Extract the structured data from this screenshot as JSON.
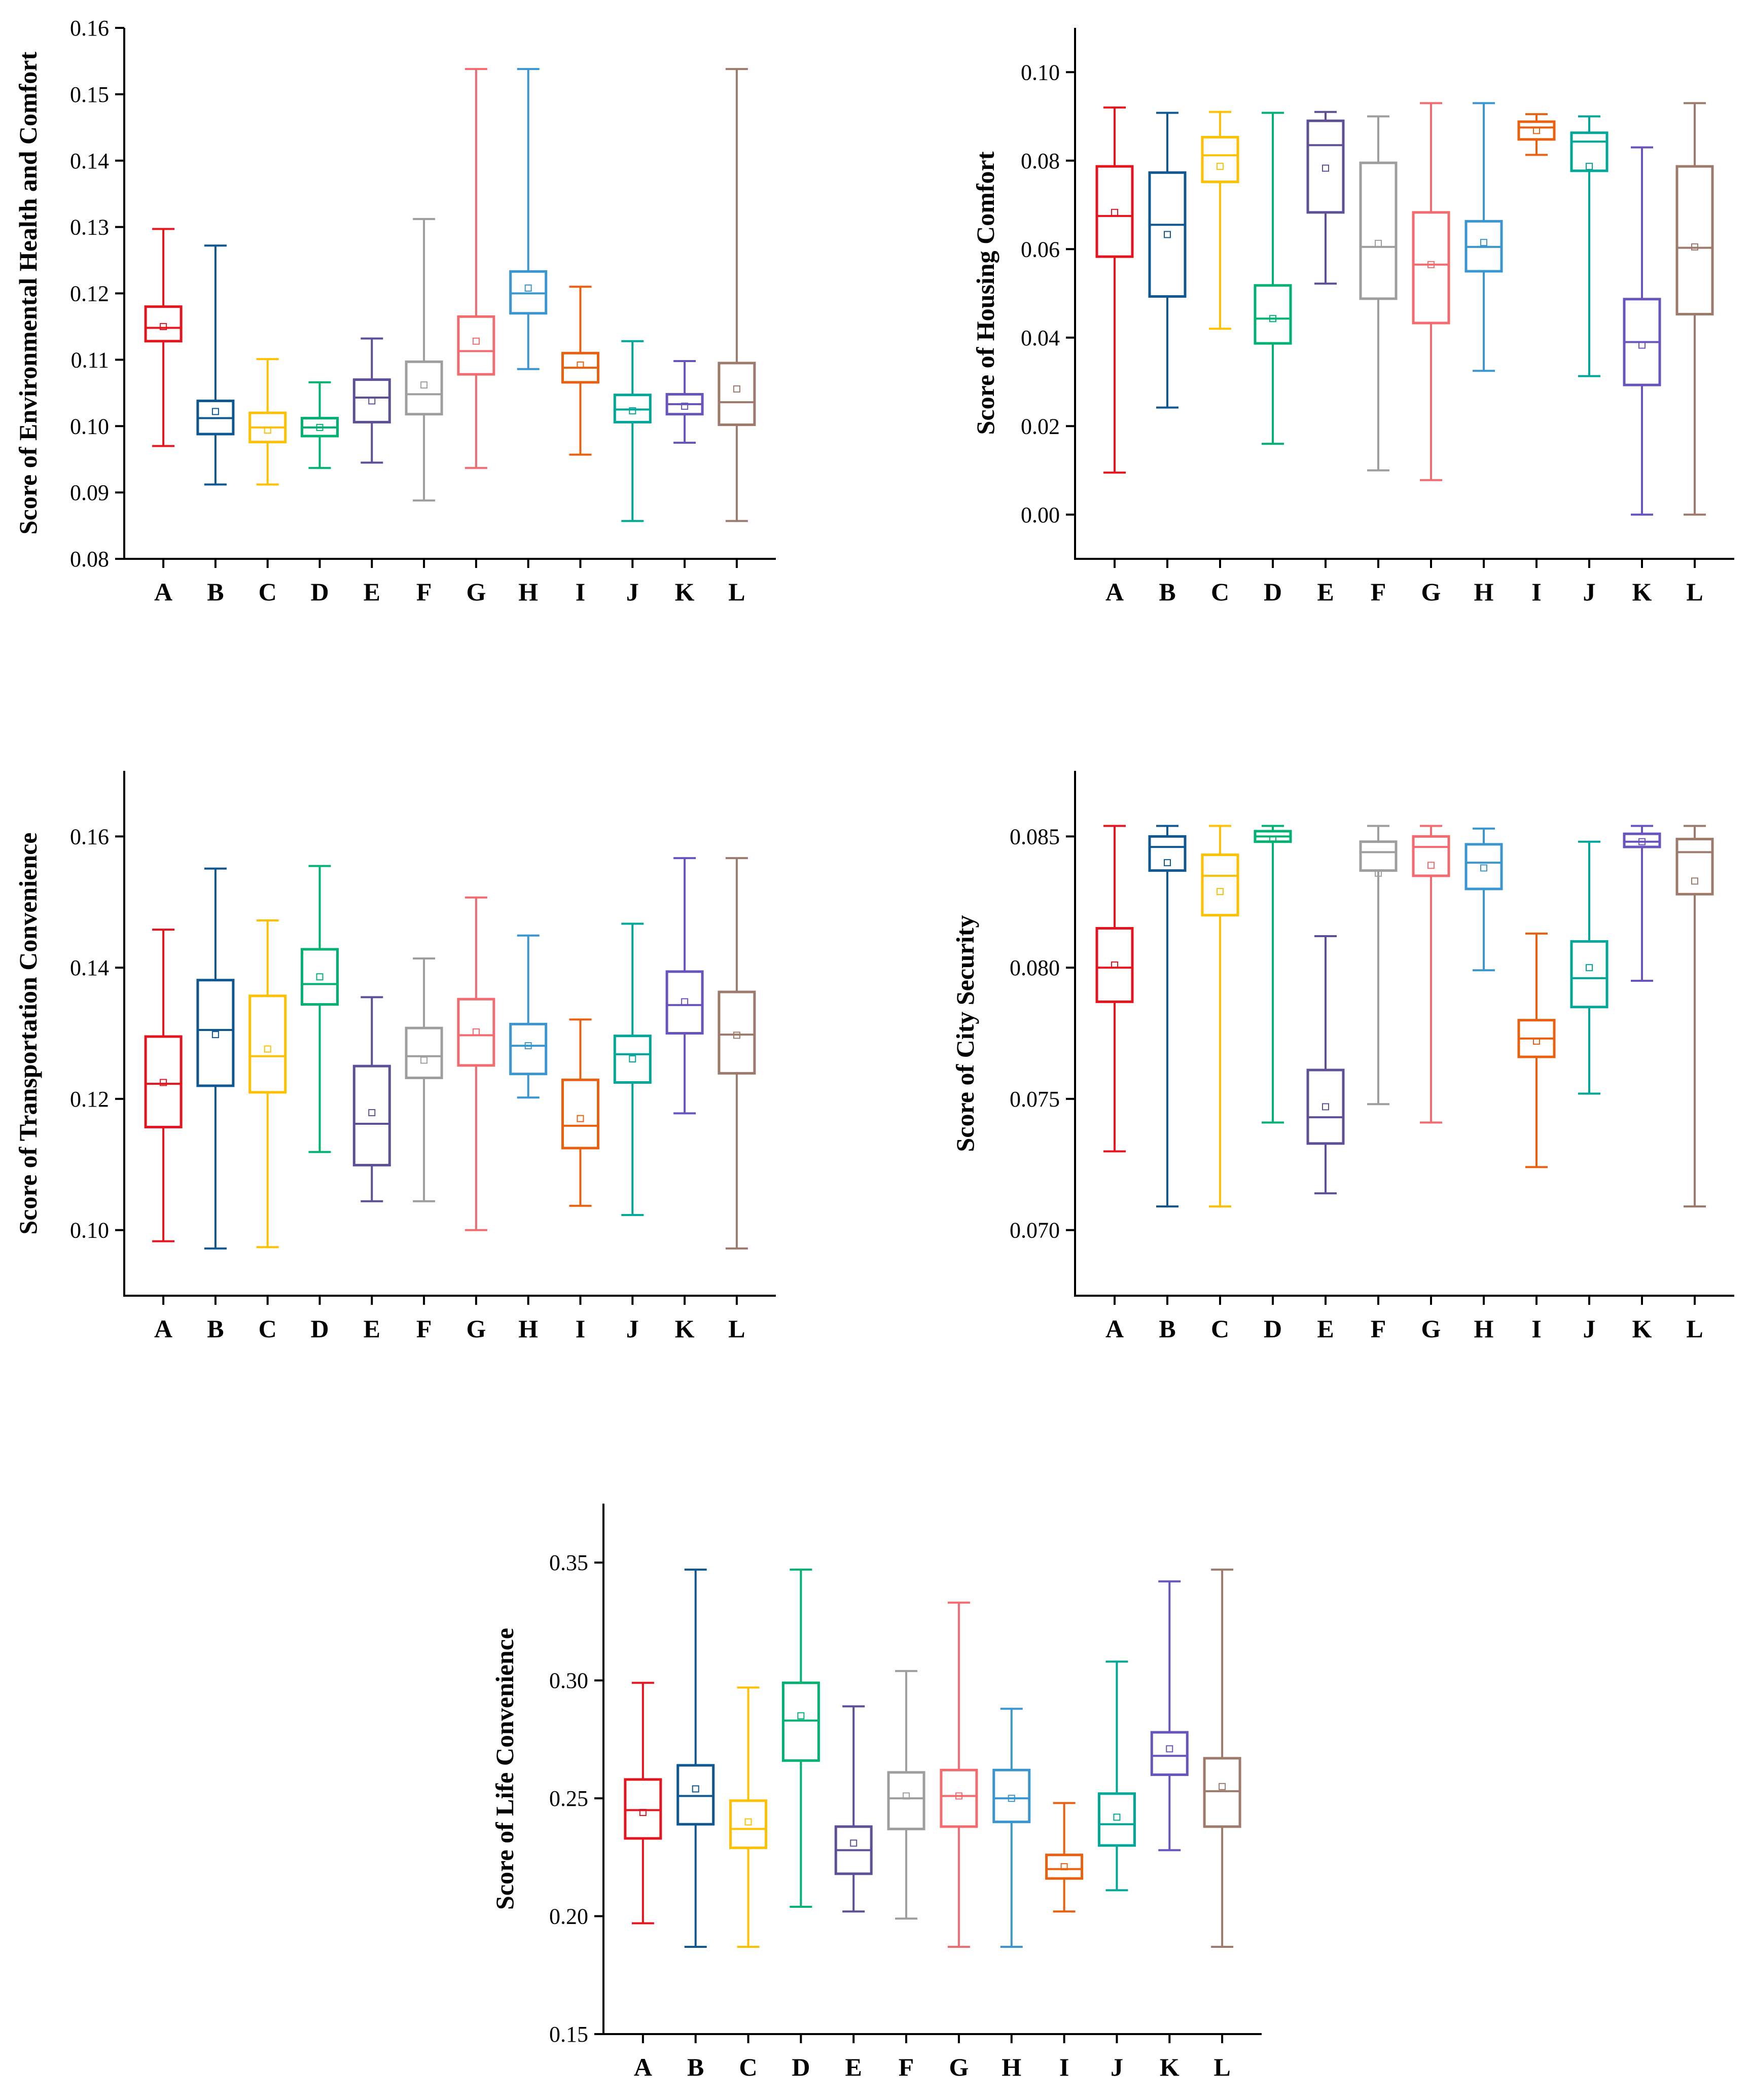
{
  "chart_data": [
    {
      "type": "box",
      "ylabel": "Score of Environmental Health and Comfort",
      "ylim": [
        0.08,
        0.16
      ],
      "yticks": [
        "0.08",
        "0.09",
        "0.10",
        "0.11",
        "0.12",
        "0.13",
        "0.14",
        "0.15",
        "0.16"
      ],
      "categories": [
        "A",
        "B",
        "C",
        "D",
        "E",
        "F",
        "G",
        "H",
        "I",
        "J",
        "K",
        "L"
      ],
      "boxes": [
        {
          "min": 0.097,
          "q1": 0.1128,
          "median": 0.1148,
          "q3": 0.118,
          "max": 0.1297,
          "mean": 0.115
        },
        {
          "min": 0.0912,
          "q1": 0.0988,
          "median": 0.1012,
          "q3": 0.1038,
          "max": 0.1272,
          "mean": 0.1022
        },
        {
          "min": 0.0912,
          "q1": 0.0976,
          "median": 0.0998,
          "q3": 0.102,
          "max": 0.1101,
          "mean": 0.0994
        },
        {
          "min": 0.0937,
          "q1": 0.0985,
          "median": 0.0998,
          "q3": 0.1012,
          "max": 0.1066,
          "mean": 0.0998
        },
        {
          "min": 0.0945,
          "q1": 0.1006,
          "median": 0.1043,
          "q3": 0.107,
          "max": 0.1132,
          "mean": 0.1038
        },
        {
          "min": 0.0888,
          "q1": 0.1018,
          "median": 0.1048,
          "q3": 0.1097,
          "max": 0.1312,
          "mean": 0.1062
        },
        {
          "min": 0.0937,
          "q1": 0.1078,
          "median": 0.1113,
          "q3": 0.1165,
          "max": 0.1538,
          "mean": 0.1128
        },
        {
          "min": 0.1086,
          "q1": 0.117,
          "median": 0.12,
          "q3": 0.1233,
          "max": 0.1538,
          "mean": 0.1208
        },
        {
          "min": 0.0957,
          "q1": 0.1066,
          "median": 0.1088,
          "q3": 0.111,
          "max": 0.121,
          "mean": 0.1092
        },
        {
          "min": 0.0857,
          "q1": 0.1006,
          "median": 0.1025,
          "q3": 0.1047,
          "max": 0.1128,
          "mean": 0.1023
        },
        {
          "min": 0.0975,
          "q1": 0.1018,
          "median": 0.1033,
          "q3": 0.1048,
          "max": 0.1098,
          "mean": 0.103
        },
        {
          "min": 0.0857,
          "q1": 0.1002,
          "median": 0.1036,
          "q3": 0.1095,
          "max": 0.1538,
          "mean": 0.1056
        }
      ]
    },
    {
      "type": "box",
      "ylabel": "Score of Housing Comfort",
      "ylim": [
        -0.01,
        0.11
      ],
      "yticks": [
        "0.00",
        "0.02",
        "0.04",
        "0.06",
        "0.08",
        "0.10"
      ],
      "categories": [
        "A",
        "B",
        "C",
        "D",
        "E",
        "F",
        "G",
        "H",
        "I",
        "J",
        "K",
        "L"
      ],
      "boxes": [
        {
          "min": 0.0095,
          "q1": 0.0583,
          "median": 0.0675,
          "q3": 0.0787,
          "max": 0.092,
          "mean": 0.0683
        },
        {
          "min": 0.0242,
          "q1": 0.0493,
          "median": 0.0655,
          "q3": 0.0773,
          "max": 0.0908,
          "mean": 0.0633
        },
        {
          "min": 0.042,
          "q1": 0.0752,
          "median": 0.0812,
          "q3": 0.0853,
          "max": 0.091,
          "mean": 0.0787
        },
        {
          "min": 0.016,
          "q1": 0.0387,
          "median": 0.0443,
          "q3": 0.0518,
          "max": 0.0908,
          "mean": 0.0443
        },
        {
          "min": 0.0522,
          "q1": 0.0683,
          "median": 0.0835,
          "q3": 0.089,
          "max": 0.091,
          "mean": 0.0783
        },
        {
          "min": 0.01,
          "q1": 0.0488,
          "median": 0.0605,
          "q3": 0.0795,
          "max": 0.09,
          "mean": 0.0613
        },
        {
          "min": 0.0078,
          "q1": 0.0433,
          "median": 0.0565,
          "q3": 0.0683,
          "max": 0.093,
          "mean": 0.0565
        },
        {
          "min": 0.0325,
          "q1": 0.055,
          "median": 0.0605,
          "q3": 0.0663,
          "max": 0.093,
          "mean": 0.0615
        },
        {
          "min": 0.0813,
          "q1": 0.0848,
          "median": 0.0875,
          "q3": 0.0888,
          "max": 0.0905,
          "mean": 0.0868
        },
        {
          "min": 0.0313,
          "q1": 0.0777,
          "median": 0.0843,
          "q3": 0.0863,
          "max": 0.09,
          "mean": 0.0787
        },
        {
          "min": 0.0,
          "q1": 0.0293,
          "median": 0.039,
          "q3": 0.0487,
          "max": 0.083,
          "mean": 0.0383
        },
        {
          "min": 0.0,
          "q1": 0.0453,
          "median": 0.0603,
          "q3": 0.0787,
          "max": 0.093,
          "mean": 0.0605
        }
      ]
    },
    {
      "type": "box",
      "ylabel": "Score of Transportation Convenience",
      "ylim": [
        0.09,
        0.17
      ],
      "yticks": [
        "0.10",
        "0.12",
        "0.14",
        "0.16"
      ],
      "categories": [
        "A",
        "B",
        "C",
        "D",
        "E",
        "F",
        "G",
        "H",
        "I",
        "J",
        "K",
        "L"
      ],
      "boxes": [
        {
          "min": 0.0983,
          "q1": 0.1157,
          "median": 0.1223,
          "q3": 0.1295,
          "max": 0.1458,
          "mean": 0.1225
        },
        {
          "min": 0.0972,
          "q1": 0.122,
          "median": 0.1305,
          "q3": 0.1381,
          "max": 0.1551,
          "mean": 0.1298
        },
        {
          "min": 0.0974,
          "q1": 0.121,
          "median": 0.1265,
          "q3": 0.1357,
          "max": 0.1472,
          "mean": 0.1276
        },
        {
          "min": 0.1119,
          "q1": 0.1344,
          "median": 0.1375,
          "q3": 0.1428,
          "max": 0.1555,
          "mean": 0.1386
        },
        {
          "min": 0.1044,
          "q1": 0.1099,
          "median": 0.1162,
          "q3": 0.125,
          "max": 0.1355,
          "mean": 0.1179
        },
        {
          "min": 0.1044,
          "q1": 0.1232,
          "median": 0.1265,
          "q3": 0.1308,
          "max": 0.1414,
          "mean": 0.1259
        },
        {
          "min": 0.1,
          "q1": 0.1251,
          "median": 0.1297,
          "q3": 0.1352,
          "max": 0.1507,
          "mean": 0.1302
        },
        {
          "min": 0.1202,
          "q1": 0.1238,
          "median": 0.1281,
          "q3": 0.1314,
          "max": 0.1449,
          "mean": 0.1281
        },
        {
          "min": 0.1037,
          "q1": 0.1125,
          "median": 0.1159,
          "q3": 0.1229,
          "max": 0.1321,
          "mean": 0.117
        },
        {
          "min": 0.1023,
          "q1": 0.1225,
          "median": 0.1268,
          "q3": 0.1296,
          "max": 0.1467,
          "mean": 0.1261
        },
        {
          "min": 0.1178,
          "q1": 0.13,
          "median": 0.1343,
          "q3": 0.1394,
          "max": 0.1567,
          "mean": 0.1348
        },
        {
          "min": 0.0972,
          "q1": 0.1239,
          "median": 0.1298,
          "q3": 0.1363,
          "max": 0.1567,
          "mean": 0.1297
        }
      ]
    },
    {
      "type": "box",
      "ylabel": "Score of City Security",
      "ylim": [
        0.0675,
        0.0875
      ],
      "yticks": [
        "0.070",
        "0.075",
        "0.080",
        "0.085"
      ],
      "categories": [
        "A",
        "B",
        "C",
        "D",
        "E",
        "F",
        "G",
        "H",
        "I",
        "J",
        "K",
        "L"
      ],
      "boxes": [
        {
          "min": 0.073,
          "q1": 0.0787,
          "median": 0.08,
          "q3": 0.0815,
          "max": 0.0854,
          "mean": 0.0801
        },
        {
          "min": 0.0709,
          "q1": 0.0837,
          "median": 0.0846,
          "q3": 0.085,
          "max": 0.0854,
          "mean": 0.084
        },
        {
          "min": 0.0709,
          "q1": 0.082,
          "median": 0.0835,
          "q3": 0.0843,
          "max": 0.0854,
          "mean": 0.0829
        },
        {
          "min": 0.0741,
          "q1": 0.0848,
          "median": 0.085,
          "q3": 0.0852,
          "max": 0.0854,
          "mean": 0.0849
        },
        {
          "min": 0.0714,
          "q1": 0.0733,
          "median": 0.0743,
          "q3": 0.0761,
          "max": 0.0812,
          "mean": 0.0747
        },
        {
          "min": 0.0748,
          "q1": 0.0837,
          "median": 0.0844,
          "q3": 0.0848,
          "max": 0.0854,
          "mean": 0.0836
        },
        {
          "min": 0.0741,
          "q1": 0.0835,
          "median": 0.0846,
          "q3": 0.085,
          "max": 0.0854,
          "mean": 0.0839
        },
        {
          "min": 0.0799,
          "q1": 0.083,
          "median": 0.084,
          "q3": 0.0847,
          "max": 0.0853,
          "mean": 0.0838
        },
        {
          "min": 0.0724,
          "q1": 0.0766,
          "median": 0.0773,
          "q3": 0.078,
          "max": 0.0813,
          "mean": 0.0772
        },
        {
          "min": 0.0752,
          "q1": 0.0785,
          "median": 0.0796,
          "q3": 0.081,
          "max": 0.0848,
          "mean": 0.08
        },
        {
          "min": 0.0795,
          "q1": 0.0846,
          "median": 0.0848,
          "q3": 0.0851,
          "max": 0.0854,
          "mean": 0.0848
        },
        {
          "min": 0.0709,
          "q1": 0.0828,
          "median": 0.0844,
          "q3": 0.0849,
          "max": 0.0854,
          "mean": 0.0833
        }
      ]
    },
    {
      "type": "box",
      "ylabel": "Score of Life Convenience",
      "ylim": [
        0.15,
        0.375
      ],
      "yticks": [
        "0.15",
        "0.20",
        "0.25",
        "0.30",
        "0.35"
      ],
      "categories": [
        "A",
        "B",
        "C",
        "D",
        "E",
        "F",
        "G",
        "H",
        "I",
        "J",
        "K",
        "L"
      ],
      "boxes": [
        {
          "min": 0.197,
          "q1": 0.233,
          "median": 0.245,
          "q3": 0.258,
          "max": 0.299,
          "mean": 0.244
        },
        {
          "min": 0.187,
          "q1": 0.239,
          "median": 0.251,
          "q3": 0.264,
          "max": 0.347,
          "mean": 0.254
        },
        {
          "min": 0.187,
          "q1": 0.229,
          "median": 0.237,
          "q3": 0.249,
          "max": 0.297,
          "mean": 0.24
        },
        {
          "min": 0.204,
          "q1": 0.266,
          "median": 0.283,
          "q3": 0.299,
          "max": 0.347,
          "mean": 0.285
        },
        {
          "min": 0.202,
          "q1": 0.218,
          "median": 0.228,
          "q3": 0.238,
          "max": 0.289,
          "mean": 0.231
        },
        {
          "min": 0.199,
          "q1": 0.237,
          "median": 0.25,
          "q3": 0.261,
          "max": 0.304,
          "mean": 0.251
        },
        {
          "min": 0.187,
          "q1": 0.238,
          "median": 0.251,
          "q3": 0.262,
          "max": 0.333,
          "mean": 0.251
        },
        {
          "min": 0.187,
          "q1": 0.24,
          "median": 0.25,
          "q3": 0.262,
          "max": 0.288,
          "mean": 0.25
        },
        {
          "min": 0.202,
          "q1": 0.216,
          "median": 0.22,
          "q3": 0.226,
          "max": 0.248,
          "mean": 0.221
        },
        {
          "min": 0.211,
          "q1": 0.23,
          "median": 0.239,
          "q3": 0.252,
          "max": 0.308,
          "mean": 0.242
        },
        {
          "min": 0.228,
          "q1": 0.26,
          "median": 0.268,
          "q3": 0.278,
          "max": 0.342,
          "mean": 0.271
        },
        {
          "min": 0.187,
          "q1": 0.238,
          "median": 0.253,
          "q3": 0.267,
          "max": 0.347,
          "mean": 0.255
        }
      ]
    }
  ],
  "colors": [
    "#e4151f",
    "#0f5791",
    "#ffc000",
    "#00b272",
    "#5e4f96",
    "#9e9e9e",
    "#f36a6f",
    "#3a96d1",
    "#e9600f",
    "#00a698",
    "#6953bd",
    "#9d7a6c"
  ]
}
